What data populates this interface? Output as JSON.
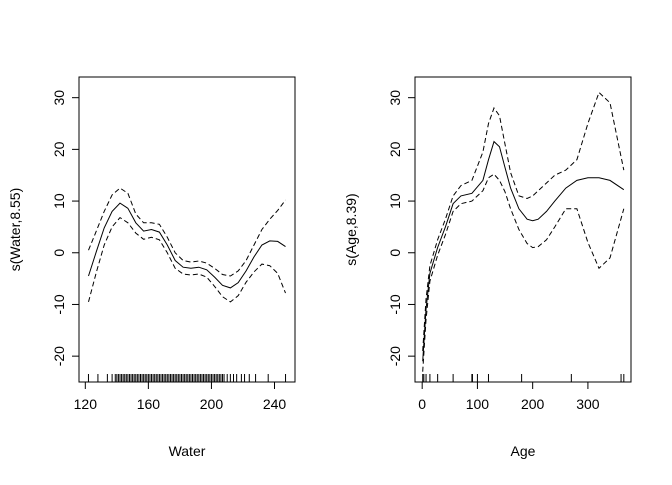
{
  "chart_data": [
    {
      "type": "line",
      "xlabel": "Water",
      "ylabel": "s(Water,8.55)",
      "xlim": [
        116,
        253
      ],
      "ylim": [
        -25,
        34
      ],
      "xticks": [
        120,
        160,
        200,
        240
      ],
      "yticks": [
        -20,
        -10,
        0,
        10,
        20,
        30
      ],
      "grid": false,
      "series": [
        {
          "role": "estimate",
          "x": [
            122,
            127,
            132,
            137,
            142,
            147,
            152,
            157,
            162,
            167,
            172,
            177,
            182,
            187,
            192,
            197,
            202,
            207,
            212,
            217,
            222,
            227,
            232,
            237,
            242,
            247
          ],
          "y": [
            -4.5,
            0.2,
            4.8,
            8.0,
            9.6,
            8.6,
            5.8,
            4.2,
            4.5,
            4.0,
            1.5,
            -1.5,
            -2.8,
            -3.0,
            -2.8,
            -3.3,
            -4.7,
            -6.3,
            -6.8,
            -5.8,
            -3.5,
            -0.8,
            1.5,
            2.3,
            2.2,
            1.2
          ]
        },
        {
          "role": "upper",
          "x": [
            122,
            127,
            132,
            137,
            142,
            147,
            152,
            157,
            162,
            167,
            172,
            177,
            182,
            187,
            192,
            197,
            202,
            207,
            212,
            217,
            222,
            227,
            232,
            237,
            242,
            247
          ],
          "y": [
            0.5,
            4.2,
            8.0,
            11.2,
            12.5,
            11.5,
            7.5,
            5.8,
            5.8,
            5.5,
            3.0,
            0.0,
            -1.5,
            -1.8,
            -1.6,
            -2.0,
            -3.0,
            -4.2,
            -4.5,
            -3.5,
            -1.5,
            1.5,
            4.5,
            6.5,
            8.2,
            10.2
          ]
        },
        {
          "role": "lower",
          "x": [
            122,
            127,
            132,
            137,
            142,
            147,
            152,
            157,
            162,
            167,
            172,
            177,
            182,
            187,
            192,
            197,
            202,
            207,
            212,
            217,
            222,
            227,
            232,
            237,
            242,
            247
          ],
          "y": [
            -9.5,
            -3.8,
            1.5,
            5.0,
            6.8,
            5.8,
            3.8,
            2.6,
            3.0,
            2.5,
            0.0,
            -3.0,
            -4.1,
            -4.3,
            -4.1,
            -4.7,
            -6.5,
            -8.5,
            -9.5,
            -8.3,
            -5.7,
            -3.7,
            -2.2,
            -2.5,
            -4.0,
            -7.8
          ]
        }
      ],
      "rug": [
        122,
        128,
        134,
        137,
        139,
        140,
        141,
        142,
        143,
        144,
        145,
        146,
        147,
        148,
        149,
        150,
        151,
        152,
        153,
        154,
        155,
        156,
        157,
        158,
        159,
        160,
        161,
        162,
        163,
        164,
        165,
        166,
        167,
        168,
        169,
        170,
        171,
        172,
        173,
        174,
        175,
        176,
        177,
        178,
        179,
        180,
        181,
        182,
        183,
        184,
        185,
        186,
        187,
        188,
        189,
        190,
        191,
        192,
        193,
        194,
        195,
        196,
        197,
        198,
        199,
        200,
        201,
        202,
        203,
        204,
        205,
        206,
        207,
        208,
        210,
        212,
        214,
        216,
        219,
        221,
        224,
        228,
        236,
        247
      ]
    },
    {
      "type": "line",
      "xlabel": "Age",
      "ylabel": "s(Age,8.39)",
      "xlim": [
        -13,
        378
      ],
      "ylim": [
        -25,
        34
      ],
      "xticks": [
        0,
        100,
        200,
        300
      ],
      "yticks": [
        -20,
        -10,
        0,
        10,
        20,
        30
      ],
      "grid": false,
      "series": [
        {
          "role": "estimate",
          "x": [
            1,
            7,
            14,
            28,
            42,
            56,
            70,
            90,
            110,
            120,
            130,
            140,
            150,
            160,
            175,
            190,
            200,
            210,
            225,
            240,
            260,
            280,
            300,
            320,
            340,
            365
          ],
          "y": [
            -21.0,
            -11.0,
            -4.0,
            1.0,
            5.0,
            9.5,
            11.0,
            11.5,
            14.0,
            18.0,
            21.5,
            20.5,
            16.5,
            12.5,
            8.5,
            6.5,
            6.2,
            6.5,
            8.0,
            10.0,
            12.5,
            14.0,
            14.5,
            14.5,
            14.0,
            12.2
          ]
        },
        {
          "role": "upper",
          "x": [
            1,
            7,
            14,
            28,
            42,
            56,
            70,
            90,
            110,
            120,
            130,
            140,
            150,
            160,
            175,
            190,
            200,
            210,
            225,
            240,
            260,
            280,
            300,
            320,
            340,
            365
          ],
          "y": [
            -19.0,
            -9.0,
            -2.5,
            2.5,
            6.5,
            11.0,
            13.0,
            14.0,
            19.5,
            25.0,
            28.0,
            26.5,
            21.0,
            15.5,
            11.0,
            10.5,
            11.0,
            12.0,
            13.5,
            15.0,
            16.0,
            18.0,
            25.0,
            31.0,
            29.0,
            16.0
          ]
        },
        {
          "role": "lower",
          "x": [
            1,
            7,
            14,
            28,
            42,
            56,
            70,
            90,
            110,
            120,
            130,
            140,
            150,
            160,
            175,
            190,
            200,
            210,
            225,
            240,
            260,
            280,
            300,
            320,
            340,
            365
          ],
          "y": [
            -23.0,
            -13.0,
            -5.5,
            -0.5,
            3.5,
            8.0,
            9.5,
            10.0,
            12.0,
            14.5,
            15.2,
            14.0,
            11.8,
            8.5,
            4.5,
            1.8,
            1.0,
            1.2,
            2.5,
            5.0,
            8.5,
            8.5,
            2.0,
            -3.0,
            -1.0,
            8.5
          ]
        }
      ],
      "rug": [
        1,
        3,
        7,
        14,
        28,
        56,
        90,
        91,
        100,
        120,
        180,
        270,
        360,
        365
      ]
    }
  ]
}
